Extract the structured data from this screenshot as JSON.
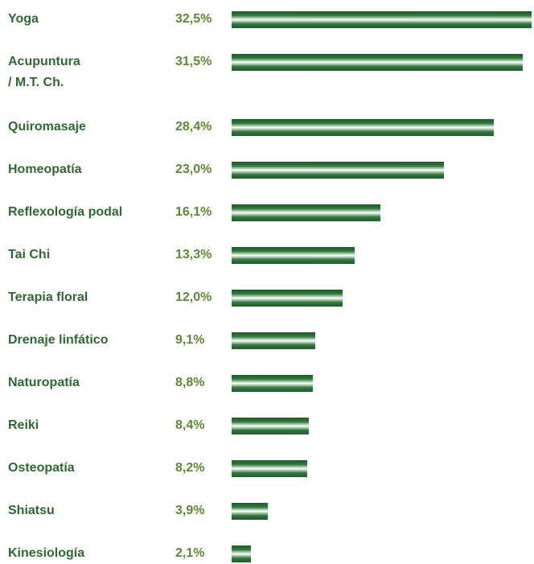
{
  "chart_data": {
    "type": "bar",
    "orientation": "horizontal",
    "categories": [
      "Yoga",
      "Acupuntura\n/ M.T. Ch.",
      "Quiromasaje",
      "Homeopatía",
      "Reflexología podal",
      "Tai Chi",
      "Terapia floral",
      "Drenaje linfático",
      "Naturopatía",
      "Reiki",
      "Osteopatía",
      "Shiatsu",
      "Kinesiología"
    ],
    "values": [
      32.5,
      31.5,
      28.4,
      23.0,
      16.1,
      13.3,
      12.0,
      9.1,
      8.8,
      8.4,
      8.2,
      3.9,
      2.1
    ],
    "value_labels": [
      "32,5%",
      "31,5%",
      "28,4%",
      "23,0%",
      "16,1%",
      "13,3%",
      "12,0%",
      "9,1%",
      "8,8%",
      "8,4%",
      "8,2%",
      "3,9%",
      "2,1%"
    ],
    "color": "#2f7a3a"
  }
}
